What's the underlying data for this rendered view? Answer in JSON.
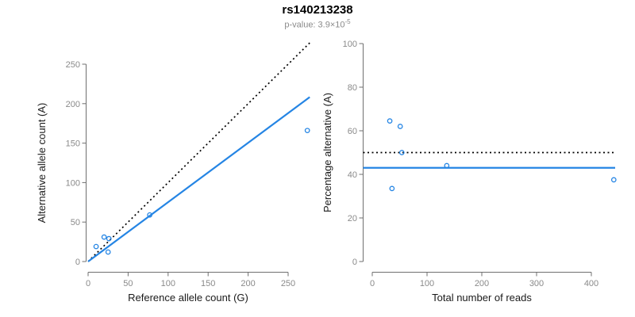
{
  "header": {
    "title": "rs140213238",
    "subtitle_prefix": "p-value: 3.9×10",
    "subtitle_exponent": "-5"
  },
  "colors": {
    "accent_blue": "#2585E4",
    "dashed_black": "#000000",
    "axis_line": "#6f6f6f",
    "tick_label": "#8a8a8a",
    "axis_title": "#1a1a1a",
    "subtitle_text": "#8a8a8a",
    "background": "#ffffff"
  },
  "chart_data": [
    {
      "type": "scatter",
      "name": "allele-counts-scatter",
      "xlabel": "Reference allele count (G)",
      "ylabel": "Alternative allele count (A)",
      "xlim": [
        0,
        277
      ],
      "ylim": [
        0,
        277
      ],
      "xticks": [
        0,
        50,
        100,
        150,
        200,
        250
      ],
      "yticks": [
        0,
        50,
        100,
        150,
        200,
        250
      ],
      "grid": false,
      "points": [
        [
          10,
          19
        ],
        [
          20,
          31
        ],
        [
          26,
          29
        ],
        [
          25,
          12
        ],
        [
          77,
          59
        ],
        [
          274,
          166
        ]
      ],
      "lines": [
        {
          "name": "identity-50pct-line",
          "style": "dashed",
          "color": "#000000",
          "slope": 1,
          "intercept": 0
        },
        {
          "name": "fitted-ratio-line",
          "style": "solid",
          "color": "#2585E4",
          "slope": 0.752,
          "intercept": 0
        }
      ]
    },
    {
      "type": "scatter",
      "name": "percentage-vs-reads-scatter",
      "xlabel": "Total number of reads",
      "ylabel": "Percentage alternative (A)",
      "xlim": [
        0,
        443
      ],
      "ylim": [
        0,
        100
      ],
      "xticks": [
        0,
        100,
        200,
        300,
        400
      ],
      "yticks": [
        0,
        20,
        40,
        60,
        80,
        100
      ],
      "grid": false,
      "points": [
        [
          32,
          64.5
        ],
        [
          51,
          62
        ],
        [
          54,
          50
        ],
        [
          36,
          33.5
        ],
        [
          136,
          44
        ],
        [
          441,
          37.5
        ]
      ],
      "lines": [
        {
          "name": "expected-50pct-line",
          "style": "dashed",
          "color": "#000000",
          "hline": 50
        },
        {
          "name": "fitted-percentage-line",
          "style": "solid",
          "color": "#2585E4",
          "hline": 43
        }
      ]
    }
  ]
}
